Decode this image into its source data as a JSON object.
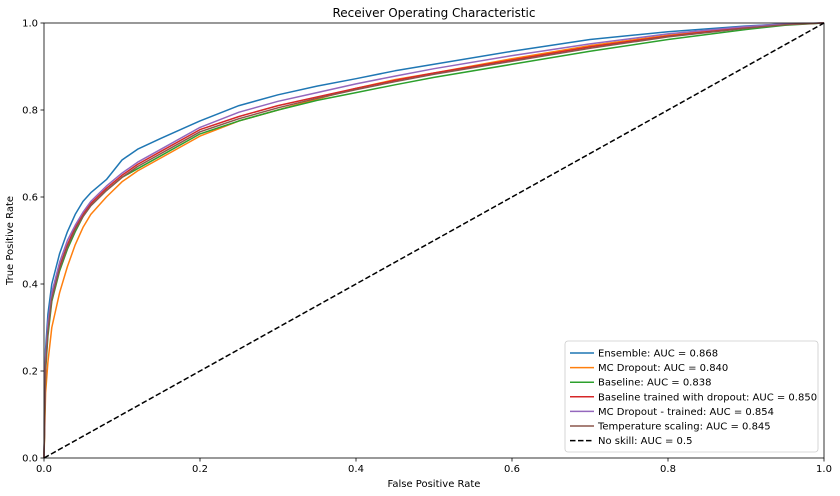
{
  "chart_data": {
    "type": "line",
    "title": "Receiver Operating Characteristic",
    "xlabel": "False Positive Rate",
    "ylabel": "True Positive Rate",
    "xlim": [
      0,
      1
    ],
    "ylim": [
      0,
      1
    ],
    "xticks": [
      "0.0",
      "0.2",
      "0.4",
      "0.6",
      "0.8",
      "1.0"
    ],
    "yticks": [
      "0.0",
      "0.2",
      "0.4",
      "0.6",
      "0.8",
      "1.0"
    ],
    "grid": false,
    "legend_position": "bottom-right",
    "series": [
      {
        "name": "Ensemble: AUC = 0.868",
        "color": "#1f77b4",
        "dash": false,
        "x": [
          0,
          0.002,
          0.005,
          0.01,
          0.02,
          0.03,
          0.04,
          0.05,
          0.06,
          0.08,
          0.1,
          0.12,
          0.15,
          0.2,
          0.25,
          0.3,
          0.35,
          0.4,
          0.45,
          0.5,
          0.6,
          0.7,
          0.8,
          0.9,
          0.95,
          1.0
        ],
        "y": [
          0,
          0.25,
          0.33,
          0.4,
          0.47,
          0.52,
          0.56,
          0.59,
          0.61,
          0.64,
          0.685,
          0.71,
          0.735,
          0.775,
          0.81,
          0.835,
          0.855,
          0.872,
          0.89,
          0.905,
          0.935,
          0.962,
          0.98,
          0.993,
          0.998,
          1.0
        ]
      },
      {
        "name": "MC Dropout: AUC = 0.840",
        "color": "#ff7f0e",
        "dash": false,
        "x": [
          0,
          0.002,
          0.005,
          0.01,
          0.02,
          0.03,
          0.04,
          0.05,
          0.06,
          0.08,
          0.1,
          0.12,
          0.15,
          0.2,
          0.25,
          0.3,
          0.35,
          0.4,
          0.45,
          0.5,
          0.6,
          0.7,
          0.8,
          0.9,
          0.95,
          1.0
        ],
        "y": [
          0,
          0.15,
          0.22,
          0.3,
          0.38,
          0.44,
          0.49,
          0.53,
          0.56,
          0.6,
          0.635,
          0.66,
          0.69,
          0.74,
          0.775,
          0.8,
          0.825,
          0.85,
          0.87,
          0.885,
          0.918,
          0.948,
          0.972,
          0.99,
          0.997,
          1.0
        ]
      },
      {
        "name": "Baseline: AUC = 0.838",
        "color": "#2ca02c",
        "dash": false,
        "x": [
          0,
          0.002,
          0.005,
          0.01,
          0.02,
          0.03,
          0.04,
          0.05,
          0.06,
          0.08,
          0.1,
          0.12,
          0.15,
          0.2,
          0.25,
          0.3,
          0.35,
          0.4,
          0.45,
          0.5,
          0.6,
          0.7,
          0.8,
          0.9,
          0.95,
          1.0
        ],
        "y": [
          0,
          0.2,
          0.28,
          0.36,
          0.43,
          0.48,
          0.52,
          0.555,
          0.58,
          0.615,
          0.645,
          0.665,
          0.695,
          0.745,
          0.775,
          0.8,
          0.822,
          0.84,
          0.858,
          0.875,
          0.905,
          0.935,
          0.962,
          0.985,
          0.995,
          1.0
        ]
      },
      {
        "name": "Baseline trained with dropout: AUC = 0.850",
        "color": "#d62728",
        "dash": false,
        "x": [
          0,
          0.002,
          0.005,
          0.01,
          0.02,
          0.03,
          0.04,
          0.05,
          0.06,
          0.08,
          0.1,
          0.12,
          0.15,
          0.2,
          0.25,
          0.3,
          0.35,
          0.4,
          0.45,
          0.5,
          0.6,
          0.7,
          0.8,
          0.9,
          0.95,
          1.0
        ],
        "y": [
          0,
          0.22,
          0.3,
          0.37,
          0.44,
          0.49,
          0.53,
          0.56,
          0.585,
          0.62,
          0.65,
          0.675,
          0.705,
          0.755,
          0.785,
          0.81,
          0.83,
          0.85,
          0.868,
          0.885,
          0.915,
          0.945,
          0.97,
          0.99,
          0.997,
          1.0
        ]
      },
      {
        "name": "MC Dropout - trained: AUC = 0.854",
        "color": "#9467bd",
        "dash": false,
        "x": [
          0,
          0.002,
          0.005,
          0.01,
          0.02,
          0.03,
          0.04,
          0.05,
          0.06,
          0.08,
          0.1,
          0.12,
          0.15,
          0.2,
          0.25,
          0.3,
          0.35,
          0.4,
          0.45,
          0.5,
          0.6,
          0.7,
          0.8,
          0.9,
          0.95,
          1.0
        ],
        "y": [
          0,
          0.23,
          0.31,
          0.38,
          0.45,
          0.5,
          0.535,
          0.565,
          0.59,
          0.625,
          0.655,
          0.68,
          0.71,
          0.76,
          0.795,
          0.82,
          0.84,
          0.86,
          0.878,
          0.895,
          0.925,
          0.952,
          0.975,
          0.992,
          0.998,
          1.0
        ]
      },
      {
        "name": "Temperature scaling: AUC = 0.845",
        "color": "#8c564b",
        "dash": false,
        "x": [
          0,
          0.002,
          0.005,
          0.01,
          0.02,
          0.03,
          0.04,
          0.05,
          0.06,
          0.08,
          0.1,
          0.12,
          0.15,
          0.2,
          0.25,
          0.3,
          0.35,
          0.4,
          0.45,
          0.5,
          0.6,
          0.7,
          0.8,
          0.9,
          0.95,
          1.0
        ],
        "y": [
          0,
          0.21,
          0.29,
          0.365,
          0.435,
          0.485,
          0.525,
          0.555,
          0.58,
          0.615,
          0.645,
          0.67,
          0.7,
          0.75,
          0.78,
          0.805,
          0.827,
          0.847,
          0.865,
          0.882,
          0.912,
          0.942,
          0.968,
          0.988,
          0.996,
          1.0
        ]
      },
      {
        "name": "No skill: AUC = 0.5",
        "color": "#000000",
        "dash": true,
        "x": [
          0,
          1
        ],
        "y": [
          0,
          1
        ]
      }
    ]
  }
}
